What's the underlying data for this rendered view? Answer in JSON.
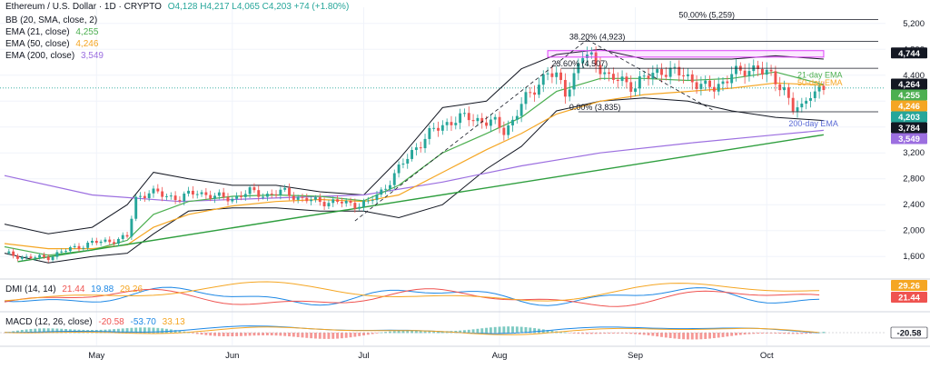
{
  "header": {
    "symbol": "Ethereum / U.S. Dollar · 1D · CRYPTO",
    "ohlc": "O4,128 H4,217 L4,065 C4,203 +74 (+1.80%)"
  },
  "indicators": {
    "bb": "BB (20, SMA, close, 2)",
    "ema21": {
      "label": "EMA (21, close)",
      "value": "4,255"
    },
    "ema50": {
      "label": "EMA (50, close)",
      "value": "4,246"
    },
    "ema200": {
      "label": "EMA (200, close)",
      "value": "3,549"
    },
    "dmi": {
      "label": "DMI (14, 14)",
      "v1": "21.44",
      "v2": "19.88",
      "v3": "29.26"
    },
    "macd": {
      "label": "MACD (12, 26, close)",
      "v1": "-20.58",
      "v2": "-53.70",
      "v3": "33.13"
    }
  },
  "colors": {
    "up": "#26a69a",
    "down": "#ef5350",
    "ema21": "#4caf50",
    "ema50": "#f5a623",
    "ema200": "#9c6fe0",
    "bb": "#131722",
    "trend": "#2e9e3e",
    "resistance_box": "#e040fb",
    "dmi_plus": "#1e88e5",
    "dmi_minus": "#ef5350",
    "adx": "#f5a623"
  },
  "chart_data": {
    "type": "candlestick",
    "y_axis_ticks": [
      "5,200",
      "4,800",
      "4,400",
      "4,000",
      "3,600",
      "3,200",
      "2,800",
      "2,400",
      "2,000",
      "1,600"
    ],
    "y_tick_values": [
      5200,
      4800,
      4400,
      4000,
      3600,
      3200,
      2800,
      2400,
      2000,
      1600
    ],
    "ylim": [
      1350,
      5450
    ],
    "x_axis_ticks": [
      "May",
      "Jun",
      "Jul",
      "Aug",
      "Sep",
      "Oct"
    ],
    "x_tick_days": [
      21,
      52,
      82,
      113,
      144,
      174
    ],
    "x_range_days": [
      0,
      198
    ],
    "close_series": [
      [
        0,
        1650
      ],
      [
        5,
        1580
      ],
      [
        10,
        1590
      ],
      [
        15,
        1720
      ],
      [
        20,
        1810
      ],
      [
        25,
        1850
      ],
      [
        28,
        1900
      ],
      [
        30,
        2500
      ],
      [
        33,
        2600
      ],
      [
        36,
        2550
      ],
      [
        40,
        2500
      ],
      [
        44,
        2600
      ],
      [
        48,
        2520
      ],
      [
        52,
        2500
      ],
      [
        56,
        2600
      ],
      [
        60,
        2550
      ],
      [
        64,
        2600
      ],
      [
        68,
        2480
      ],
      [
        72,
        2450
      ],
      [
        76,
        2440
      ],
      [
        80,
        2400
      ],
      [
        83,
        2430
      ],
      [
        86,
        2600
      ],
      [
        90,
        2950
      ],
      [
        94,
        3300
      ],
      [
        98,
        3550
      ],
      [
        102,
        3700
      ],
      [
        106,
        3750
      ],
      [
        109,
        3700
      ],
      [
        112,
        3650
      ],
      [
        114,
        3550
      ],
      [
        116,
        3700
      ],
      [
        118,
        3950
      ],
      [
        120,
        4100
      ],
      [
        122,
        4300
      ],
      [
        124,
        4450
      ],
      [
        126,
        4350
      ],
      [
        128,
        4150
      ],
      [
        130,
        4400
      ],
      [
        132,
        4700
      ],
      [
        134,
        4650
      ],
      [
        136,
        4550
      ],
      [
        138,
        4350
      ],
      [
        141,
        4300
      ],
      [
        144,
        4250
      ],
      [
        146,
        4350
      ],
      [
        148,
        4400
      ],
      [
        150,
        4500
      ],
      [
        152,
        4450
      ],
      [
        155,
        4400
      ],
      [
        158,
        4300
      ],
      [
        160,
        4200
      ],
      [
        162,
        4200
      ],
      [
        164,
        4300
      ],
      [
        166,
        4450
      ],
      [
        168,
        4400
      ],
      [
        170,
        4500
      ],
      [
        172,
        4550
      ],
      [
        174,
        4400
      ],
      [
        176,
        4300
      ],
      [
        178,
        4200
      ],
      [
        180,
        3900
      ],
      [
        182,
        3850
      ],
      [
        184,
        4150
      ],
      [
        186,
        4200
      ],
      [
        187,
        4203
      ]
    ],
    "bb_upper": [
      [
        0,
        2100
      ],
      [
        10,
        1950
      ],
      [
        20,
        2050
      ],
      [
        28,
        2400
      ],
      [
        34,
        2900
      ],
      [
        42,
        2800
      ],
      [
        52,
        2700
      ],
      [
        62,
        2700
      ],
      [
        72,
        2600
      ],
      [
        82,
        2550
      ],
      [
        90,
        3100
      ],
      [
        100,
        3900
      ],
      [
        110,
        4000
      ],
      [
        118,
        4500
      ],
      [
        126,
        4720
      ],
      [
        136,
        4800
      ],
      [
        146,
        4650
      ],
      [
        156,
        4650
      ],
      [
        166,
        4650
      ],
      [
        176,
        4700
      ],
      [
        187,
        4650
      ]
    ],
    "bb_lower": [
      [
        0,
        1650
      ],
      [
        10,
        1500
      ],
      [
        20,
        1600
      ],
      [
        28,
        1650
      ],
      [
        34,
        1950
      ],
      [
        42,
        2300
      ],
      [
        52,
        2350
      ],
      [
        62,
        2350
      ],
      [
        72,
        2300
      ],
      [
        82,
        2300
      ],
      [
        90,
        2200
      ],
      [
        100,
        2400
      ],
      [
        110,
        2950
      ],
      [
        118,
        3300
      ],
      [
        126,
        3850
      ],
      [
        136,
        4000
      ],
      [
        146,
        4050
      ],
      [
        156,
        4000
      ],
      [
        166,
        3850
      ],
      [
        176,
        3750
      ],
      [
        187,
        3700
      ]
    ],
    "ema21": [
      [
        0,
        1750
      ],
      [
        10,
        1620
      ],
      [
        20,
        1700
      ],
      [
        28,
        1850
      ],
      [
        34,
        2250
      ],
      [
        42,
        2450
      ],
      [
        52,
        2530
      ],
      [
        62,
        2550
      ],
      [
        72,
        2530
      ],
      [
        82,
        2460
      ],
      [
        90,
        2700
      ],
      [
        100,
        3200
      ],
      [
        110,
        3500
      ],
      [
        118,
        3750
      ],
      [
        126,
        4150
      ],
      [
        136,
        4350
      ],
      [
        146,
        4350
      ],
      [
        156,
        4320
      ],
      [
        166,
        4350
      ],
      [
        176,
        4450
      ],
      [
        187,
        4255
      ]
    ],
    "ema50": [
      [
        0,
        1800
      ],
      [
        10,
        1720
      ],
      [
        20,
        1720
      ],
      [
        28,
        1780
      ],
      [
        34,
        2050
      ],
      [
        42,
        2250
      ],
      [
        52,
        2380
      ],
      [
        62,
        2450
      ],
      [
        72,
        2480
      ],
      [
        82,
        2450
      ],
      [
        90,
        2550
      ],
      [
        100,
        2900
      ],
      [
        110,
        3250
      ],
      [
        118,
        3500
      ],
      [
        126,
        3800
      ],
      [
        136,
        4000
      ],
      [
        146,
        4100
      ],
      [
        156,
        4150
      ],
      [
        166,
        4200
      ],
      [
        176,
        4280
      ],
      [
        187,
        4246
      ]
    ],
    "ema200": [
      [
        0,
        2850
      ],
      [
        20,
        2550
      ],
      [
        40,
        2450
      ],
      [
        60,
        2500
      ],
      [
        82,
        2550
      ],
      [
        100,
        2750
      ],
      [
        118,
        3000
      ],
      [
        136,
        3200
      ],
      [
        156,
        3350
      ],
      [
        176,
        3480
      ],
      [
        187,
        3549
      ]
    ],
    "trendline": [
      [
        3,
        1520
      ],
      [
        187,
        3480
      ]
    ],
    "horizontal_levels": [
      {
        "label": "50.00% (5,259)",
        "value": 5259
      },
      {
        "label": "38.20% (4,923)",
        "value": 4923
      },
      {
        "label": "23.60% (4,507)",
        "value": 4507
      },
      {
        "label": "0.00% (3,835)",
        "value": 3835
      }
    ],
    "resistance_zone": {
      "low": 4680,
      "high": 4780,
      "x_start_days": 124,
      "x_end_days": 187
    },
    "annotations": [
      "21-day EMA",
      "50-day EMA",
      "200-day EMA"
    ],
    "price_tags": [
      "4,744",
      "4,264",
      "4,255",
      "4,246",
      "4,203",
      "3,784",
      "3,549"
    ],
    "price_tag_values": [
      4744,
      4264,
      4255,
      4246,
      4203,
      3784,
      3549
    ],
    "dmi_tags": [
      "29.26",
      "21.44"
    ],
    "macd_tag": "-20.58"
  }
}
